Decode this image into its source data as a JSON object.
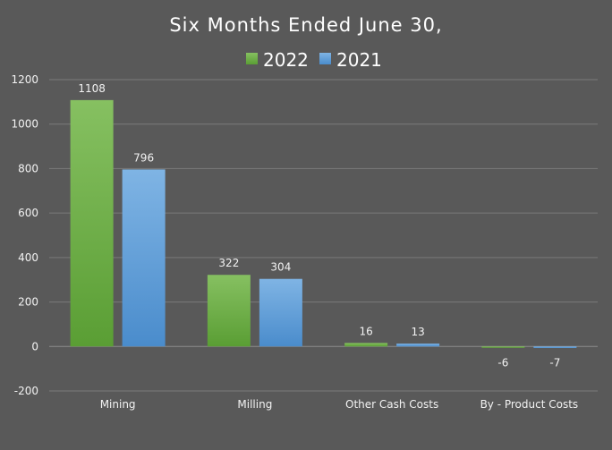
{
  "chart_data": {
    "type": "bar",
    "title": "Six Months Ended June 30,",
    "xlabel": "",
    "ylabel": "",
    "categories": [
      "Mining",
      "Milling",
      "Other Cash Costs",
      "By - Product Costs"
    ],
    "series": [
      {
        "name": "2022",
        "values": [
          1108,
          322,
          16,
          -6
        ],
        "color": "#6fb043"
      },
      {
        "name": "2021",
        "values": [
          796,
          304,
          13,
          -7
        ],
        "color": "#5b9bd5"
      }
    ],
    "data_labels": [
      [
        "1108",
        "322",
        "16",
        "-6"
      ],
      [
        "796",
        "304",
        "13",
        "-7"
      ]
    ],
    "ylim": [
      -200,
      1200
    ],
    "yticks": [
      -200,
      0,
      200,
      400,
      600,
      800,
      1000,
      1200
    ],
    "ytick_labels": [
      "-200",
      "0",
      "200",
      "400",
      "600",
      "800",
      "1000",
      "1200"
    ],
    "grid": true,
    "legend_position": "top"
  },
  "colors": {
    "background": "#595959",
    "gridline": "#7a7a7a",
    "text": "#ffffff",
    "axis_text": "#f2f2f2"
  }
}
